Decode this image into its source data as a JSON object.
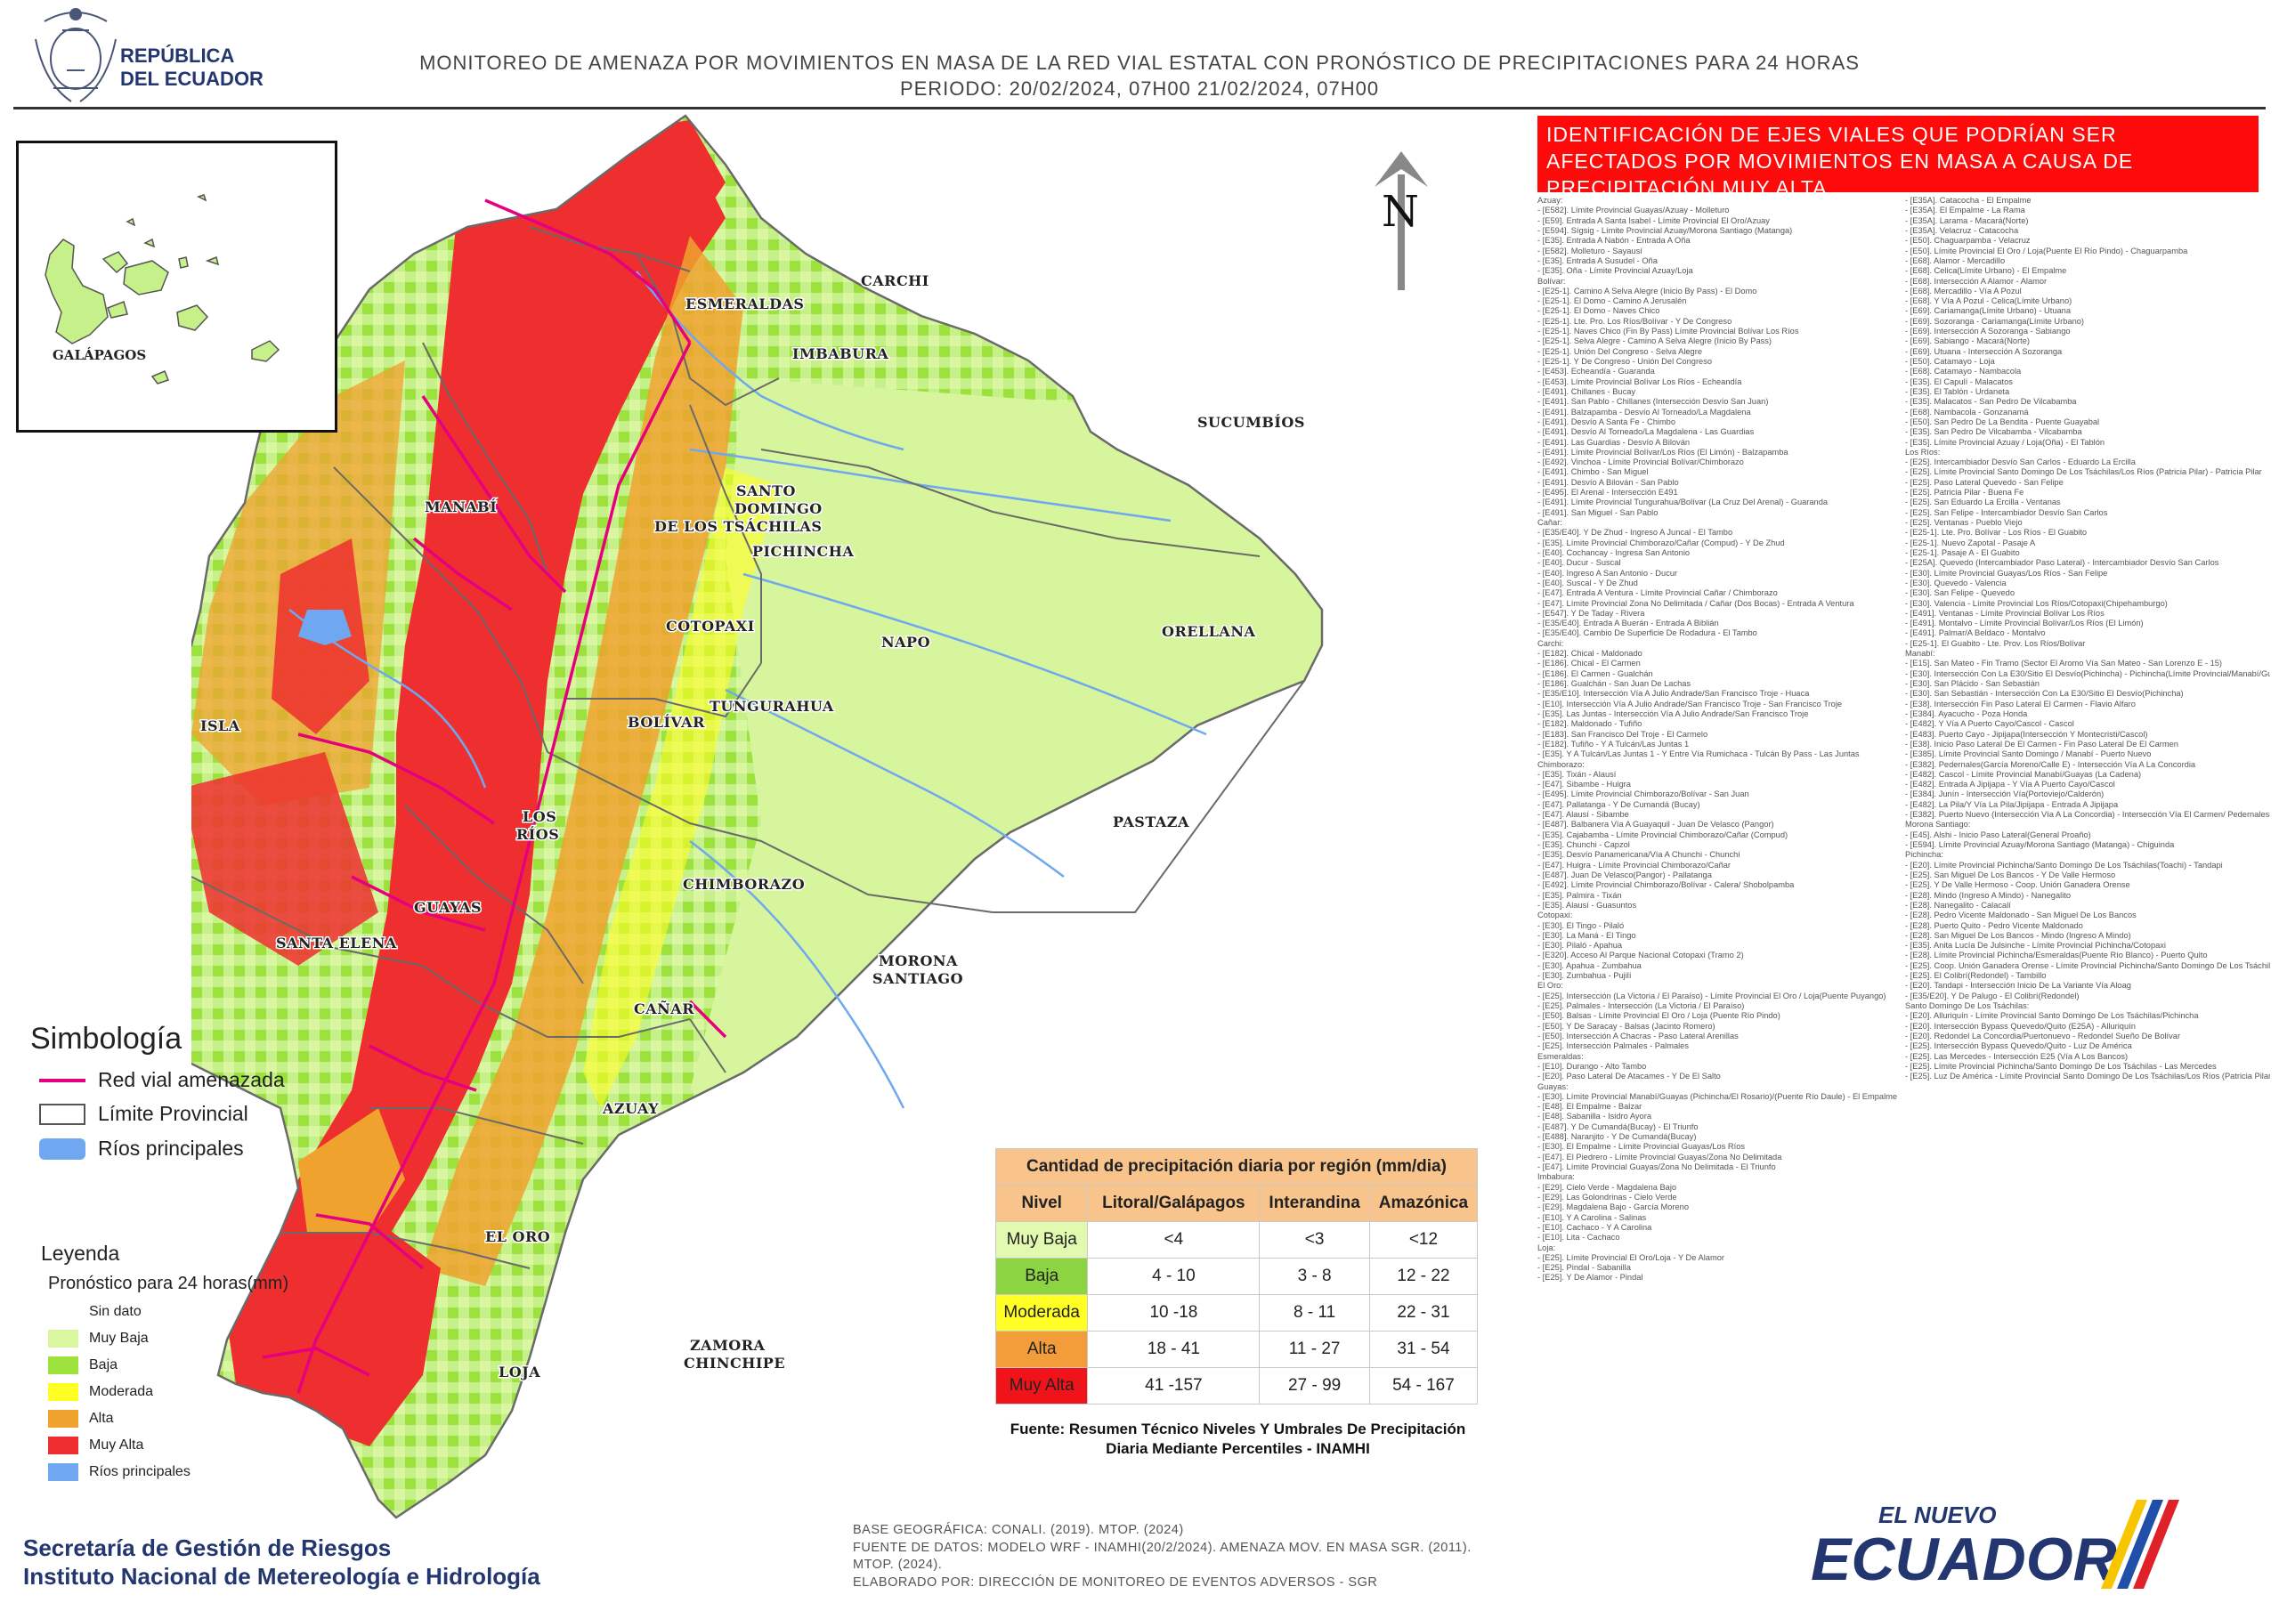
{
  "header": {
    "country_line1": "REPÚBLICA",
    "country_line2": "DEL ECUADOR",
    "title_line1": "MONITOREO DE AMENAZA POR MOVIMIENTOS EN MASA DE LA RED VIAL  ESTATAL  CON PRONÓSTICO  DE  PRECIPITACIONES PARA 24 HORAS",
    "title_line2": "PERIODO: 20/02/2024, 07H00 21/02/2024, 07H00"
  },
  "inset": {
    "label": "GALÁPAGOS"
  },
  "north_arrow": {
    "label": "N"
  },
  "provinces": {
    "carchi": "CARCHI",
    "esmeraldas": "ESMERALDAS",
    "imbabura": "IMBABURA",
    "sucumbios": "SUCUMBÍOS",
    "manabi": "MANABÍ",
    "santo_domingo_1": "SANTO",
    "santo_domingo_2": "DOMINGO",
    "santo_domingo_3": "DE LOS TSÁCHILAS",
    "pichincha": "PICHINCHA",
    "napo": "NAPO",
    "orellana": "ORELLANA",
    "cotopaxi": "COTOPAXI",
    "isla": "ISLA",
    "bolivar": "BOLÍVAR",
    "tungurahua": "TUNGURAHUA",
    "los_rios_1": "LOS",
    "los_rios_2": "RÍOS",
    "pastaza": "PASTAZA",
    "chimborazo": "CHIMBORAZO",
    "guayas": "GUAYAS",
    "santa_elena": "SANTA ELENA",
    "morona_1": "MORONA",
    "morona_2": "SANTIAGO",
    "canar": "CAÑAR",
    "azuay": "AZUAY",
    "el_oro": "EL ORO",
    "zamora_1": "ZAMORA",
    "zamora_2": "CHINCHIPE",
    "loja": "LOJA"
  },
  "side_panel": {
    "header": "IDENTIFICACIÓN DE EJES VIALES QUE PODRÍAN SER AFECTADOS POR MOVIMIENTOS EN MASA A CAUSA DE PRECIPITACIÓN MUY ALTA",
    "column1": [
      "Azuay:",
      "- [E582]. Límite Provincial Guayas/Azuay - Molleturo",
      "- [E59]. Entrada A Santa Isabel - Límite Provincial El Oro/Azuay",
      "- [E594]. Sígsig - Límite Provincial Azuay/Morona Santiago (Matanga)",
      "- [E35]. Entrada A Nabón - Entrada A Oña",
      "- [E582]. Molleturo - Sayausí",
      "- [E35]. Entrada A Susudel - Oña",
      "- [E35]. Oña - Límite Provincial Azuay/Loja",
      "Bolívar:",
      "- [E25-1]. Camino A Selva Alegre (Inicio By Pass) - El Domo",
      "- [E25-1]. El Domo - Camino A Jerusalén",
      "- [E25-1]. El Domo - Naves Chico",
      "- [E25-1]. Lte. Pro. Los Ríos/Bolívar - Y De Congreso",
      "- [E25-1]. Naves Chico (Fin By Pass) Límite Provincial Bolívar Los Ríos",
      "- [E25-1]. Selva Alegre - Camino A Selva Alegre (Inicio By Pass)",
      "- [E25-1]. Unión Del Congreso - Selva  Alegre",
      "- [E25-1]. Y De Congreso - Unión Del Congreso",
      "- [E453]. Echeandía - Guaranda",
      "- [E453]. Límite Provincial Bolívar Los Ríos - Echeandía",
      "- [E491]. Chillanes - Bucay",
      "- [E491]. San Pablo - Chillanes (Intersección Desvío San Juan)",
      "- [E491]. Balzapamba - Desvío Al Torneado/La Magdalena",
      "- [E491]. Desvío A Santa Fe - Chimbo",
      "- [E491]. Desvío Al Torneado/La Magdalena - Las Guardias",
      "- [E491]. Las Guardias - Desvío A Bilován",
      "- [E491]. Límite Provincial Bolívar/Los Ríos (El Limón) - Balzapamba",
      "- [E492]. Vinchoa - Límite Provincial Bolívar/Chimborazo",
      "- [E491]. Chimbo - San Miguel",
      "- [E491]. Desvío A Bilován - San Pablo",
      "- [E495]. El Arenal - Intersección E491",
      "- [E491]. Límite Provincial Tungurahua/Bolívar (La Cruz Del Arenal) - Guaranda",
      "- [E491]. San Miguel - San Pablo",
      "Cañar:",
      "- [E35/E40]. Y De Zhud - Ingreso A Juncal - El Tambo",
      "- [E35]. Límite Provincial Chimborazo/Cañar (Compud) - Y De Zhud",
      "- [E40]. Cochancay - Ingresa San Antonio",
      "- [E40]. Ducur - Suscal",
      "- [E40]. Ingreso A San Antonio - Ducur",
      "- [E40]. Suscal - Y De Zhud",
      "- [E47]. Entrada A Ventura - Límite Provincial Cañar / Chimborazo",
      "- [E47]. Límite Provincial Zona No Delimitada / Cañar (Dos Bocas) - Entrada  A Ventura",
      "- [E547]. Y De Taday - Rivera",
      "- [E35/E40]. Entrada A Buerán - Entrada A Biblián",
      "- [E35/E40]. Cambio De Superficie De Rodadura - El Tambo",
      "Carchi:",
      "- [E182]. Chical - Maldonado",
      "- [E186]. Chical - El Carmen",
      "- [E186]. El Carmen - Gualchán",
      "- [E186]. Gualchán - San Juan De Lachas",
      "- [E35/E10]. Intersección Vía A Julio Andrade/San Francisco Troje - Huaca",
      "- [E10]. Intersección Vía A Julio Andrade/San Francisco Troje - San Francisco Troje",
      "- [E35]. Las Juntas - Intersección Vía A Julio Andrade/San Francisco Troje",
      "- [E182]. Maldonado - Tufiño",
      "- [E183]. San Francisco Del Troje - El Carmelo",
      "- [E182]. Tufiño - Y A Tulcán/Las Juntas 1",
      "- [E35]. Y A Tulcán/Las Juntas 1 - Y Entre Vía Rumichaca - Tulcán By Pass - Las Juntas",
      "Chimborazo:",
      "- [E35]. Tixán - Alausí",
      "- [E47]. Sibambe - Huigra",
      "- [E495]. Límite Provincial Chimborazo/Bolívar - San Juan",
      "- [E47]. Pallatanga - Y De Cumandá (Bucay)",
      "- [E47]. Alausí - Sibambe",
      "- [E487]. Balbanera Vía A Guayaquil - Juan De Velasco (Pangor)",
      "- [E35]. Cajabamba - Límite Provincial Chimborazo/Cañar (Compud)",
      "- [E35]. Chunchi - Capzol",
      "- [E35]. Desvío Panamericana/Vía A Chunchi - Chunchi",
      "- [E47]. Huigra - Límite Provincial Chimborazo/Cañar",
      "- [E487]. Juan De Velasco(Pangor) - Pallatanga",
      "- [E492]. Límite Provincial Chimborazo/Bolívar - Calera/ Shobolpamba",
      "- [E35]. Palmira - Tixán",
      "- [E35]. Alausí - Guasuntos",
      "Cotopaxi:",
      "- [E30]. El Tingo - Pilaló",
      "- [E30]. La Maná - El Tingo",
      "- [E30]. Pilaló - Apahua",
      "- [E320]. Acceso Al Parque Nacional Cotopaxi (Tramo 2)",
      "- [E30]. Apahua - Zumbahua",
      "- [E30]. Zumbahua - Pujilí",
      "El Oro:",
      "- [E25]. Intersección (La Victoria / El Paraíso) - Límite Provincial El Oro / Loja(Puente Puyango)",
      "- [E25]. Palmales - Intersección (La Victoria / El Paraíso)",
      "- [E50]. Balsas - Límite Provincial El Oro / Loja (Puente Río Pindo)",
      "- [E50]. Y De Saracay - Balsas (Jacinto Romero)",
      "- [E50]. Intersección A Chacras - Paso Lateral Arenillas",
      "- [E25]. Intersección Palmales - Palmales",
      "Esmeraldas:",
      "- [E10]. Durango - Alto Tambo",
      "- [E20]. Paso Lateral De Atacames - Y De El Salto",
      "Guayas:",
      "- [E30]. Límite Provincial Manabí/Guayas (Pichincha/El Rosario)/(Puente Río Daule) - El Empalme",
      "- [E48]. El Empalme - Balzar",
      "- [E48]. Sabanilla - Isidro Ayora",
      "- [E487]. Y De Cumandá(Bucay) - El Triunfo",
      "- [E488]. Naranjito - Y De Cumandá(Bucay)",
      "- [E30]. El Empalme - Límite Provincial Guayas/Los Ríos",
      "- [E47]. El Piedrero - Límite Provincial Guayas/Zona No Delimitada",
      "- [E47]. Límite Provincial Guayas/Zona No Delimitada - El Triunfo",
      "Imbabura:",
      "- [E29]. Cielo Verde - Magdalena Bajo",
      "- [E29]. Las Golondrinas - Cielo Verde",
      "- [E29]. Magdalena Bajo - García Moreno",
      "- [E10]. Y A Carolina - Salinas",
      "- [E10]. Cachaco - Y A Carolina",
      "- [E10]. Lita - Cachaco",
      "Loja:",
      "- [E25]. Límite Provincial El Oro/Loja - Y De Alamor",
      "- [E25]. Pindal - Sabanilla",
      "- [E25]. Y De Alamor - Pindal"
    ],
    "column2": [
      "- [E35A]. Catacocha - El Empalme",
      "- [E35A]. El Empalme - La Rama",
      "- [E35A]. Larama - Macará(Norte)",
      "- [E35A]. Velacruz - Catacocha",
      "- [E50]. Chaguarpamba - Velacruz",
      "- [E50]. Límite Provincial El Oro / Loja(Puente El Río Pindo) - Chaguarpamba",
      "- [E68]. Alamor - Mercadillo",
      "- [E68]. Celica(Límite Urbano) - El Empalme",
      "- [E68]. Intersección A Alamor - Alamor",
      "- [E68]. Mercadillo - Vía A Pozul",
      "- [E68]. Y Vía A Pozul - Celica(Límite Urbano)",
      "- [E69]. Cariamanga(Límite Urbano) - Utuana",
      "- [E69]. Sozoranga - Cariamanga(Límite Urbano)",
      "- [E69]. Intersección A Sozoranga - Sabiango",
      "- [E69]. Sabiango - Macará(Norte)",
      "- [E69]. Utuana - Intersección A Sozoranga",
      "- [E50]. Catamayo - Loja",
      "- [E68]. Catamayo - Nambacola",
      "- [E35]. El Capulí - Malacatos",
      "- [E35]. El Tablón - Urdaneta",
      "- [E35]. Malacatos - San Pedro De Vilcabamba",
      "- [E68]. Nambacola - Gonzanamá",
      "- [E50]. San Pedro De La Bendita - Puente Guayabal",
      "- [E35]. San Pedro De Vilcabamba - Vilcabamba",
      "- [E35]. Límite Provincial Azuay / Loja(Oña) - El Tablón",
      "Los Ríos:",
      "- [E25]. Intercambiador Desvío  San Carlos - Eduardo La Ercilla",
      "- [E25]. Límite Provincial Santo Domingo De Los Tsáchilas/Los Ríos (Patricia Pilar) - Patricia Pilar",
      "- [E25]. Paso Lateral Quevedo - San Felipe",
      "- [E25]. Patricia Pilar - Buena Fe",
      "- [E25]. San Eduardo La Ercilla - Ventanas",
      "- [E25]. San Felipe - Intercambiador Desvío  San Carlos",
      "- [E25]. Ventanas - Pueblo Viejo",
      "- [E25-1]. Lte. Pro. Bolívar - Los Ríos - El Guabito",
      "- [E25-1]. Nuevo Zapotal - Pasaje A",
      "- [E25-1]. Pasaje A - El Guabito",
      "- [E25A]. Quevedo (Intercambiador Paso Lateral) - Intercambiador Desvío  San Carlos",
      "- [E30]. Límite Provincial Guayas/Los Ríos - San Felipe",
      "- [E30]. Quevedo - Valencia",
      "- [E30]. San Felipe - Quevedo",
      "- [E30]. Valencia - Límite Provincial Los Ríos/Cotopaxi(Chipehamburgo)",
      "- [E491]. Ventanas - Límite Provincial Bolívar Los Ríos",
      "- [E491]. Montalvo - Límite Provincial Bolívar/Los Ríos (El Limón)",
      "- [E491]. Palmar/A Beldaco - Montalvo",
      "- [E25-1]. El Guabito - Lte. Prov. Los Ríos/Bolívar",
      "Manabí:",
      "- [E15]. San Mateo - Fin Tramo (Sector El Aromo Vía San Mateo - San Lorenzo E - 15)",
      "- [E30]. Intersección Con La E30/Sitio El Desvío(Pichincha) - Pichincha(Límite Provincial/Manabí/Guayas)",
      "- [E30]. San Plácido - San Sebastián",
      "- [E30]. San Sebastián - Intersección Con La E30/Sitio El Desvío(Pichincha)",
      "- [E38]. Intersección Fin Paso Lateral El Carmen - Flavio Alfaro",
      "- [E384]. Ayacucho - Poza Honda",
      "- [E482]. Y Vía A Puerto Cayo/Cascol - Cascol",
      "- [E483]. Puerto Cayo - Jipijapa(Intersección Y Montecristi/Cascol)",
      "- [E38]. Inicio Paso Lateral De El Carmen - Fin Paso Lateral De El Carmen",
      "- [E385]. Límite Provincial Santo Domingo / Manabí - Puerto Nuevo",
      "- [E382]. Pedernales(García Moreno/Calle E) - Intersección Vía A La Concordia",
      "- [E482]. Cascol - Límite Provincial Manabí/Guayas (La Cadena)",
      "- [E482]. Entrada A Jipijapa - Y Vía A Puerto Cayo/Cascol",
      "- [E384]. Junín - Intersección Vía(Portoviejo/Calderón)",
      "- [E482]. La Pila/Y Vía La Pila/Jipijapa - Entrada A Jipijapa",
      "- [E382]. Puerto Nuevo (Intersección Vía A La Concordia) - Intersección Vía El Carmen/ Pedernales(Redondel)",
      "Morona Santiago:",
      "- [E45]. Alshi - Inicio Paso Lateral(General Proaño)",
      "- [E594]. Límite Provincial Azuay/Morona Santiago (Matanga) - Chiguinda",
      "Pichincha:",
      "- [E20]. Límite Provincial Pichincha/Santo Domingo De Los Tsáchilas(Toachi) - Tandapi",
      "- [E25]. San Miguel De Los Bancos - Y De Valle Hermoso",
      "- [E25]. Y De Valle Hermoso - Coop. Unión Ganadera Orense",
      "- [E28]. Mindo (Ingreso A Mindo) - Nanegalito",
      "- [E28]. Nanegalito - Calacalí",
      "- [E28]. Pedro Vicente Maldonado - San Miguel De Los Bancos",
      "- [E28]. Puerto Quito - Pedro Vicente Maldonado",
      "- [E28]. San Miguel De Los Bancos - Mindo (Ingreso A Mindo)",
      "- [E35]. Anita Lucía De Julsinche - Límite Provincial Pichincha/Cotopaxi",
      "- [E28]. Límite Provincial Pichincha/Esmeraldas(Puente Río Blanco) - Puerto Quito",
      "- [E25]. Coop. Unión Ganadera Orense - Límite Provincial Pichincha/Santo Domingo De Los Tsáchilas(Puente Río Mulaute)",
      "- [E25]. El Colibrí(Redondel) - Tambillo",
      "- [E20]. Tandapi - Intersección Inicio De La Variante Vía Aloag",
      "- [E35/E20]. Y De Palugo - El Colibrí(Redondel)",
      "Santo Domingo De Los Tsáchilas:",
      "- [E20]. Alluriquín - Límite Provincial Santo Domingo De Los Tsáchilas/Pichincha",
      "- [E20]. Intersección Bypass Quevedo/Quito (E25A) - Alluriquín",
      "- [E20]. Redondel La Concordia/Puertonuevo - Redondel Sueño De Bolívar",
      "- [E25]. Intersección Bypass Quevedo/Quito - Luz De América",
      "- [E25]. Las Mercedes - Intersección E25 (Vía A Los Bancos)",
      "- [E25]. Límite Provincial Pichincha/Santo Domingo De Los Tsáchilas - Las Mercedes",
      "- [E25]. Luz De América - Límite Provincial Santo Domingo De Los Tsáchilas/Los Ríos (Patricia Pilar)"
    ]
  },
  "symbology": {
    "title": "Simbología",
    "items": [
      {
        "label": "Red vial amenazada",
        "color": "#e6007e"
      },
      {
        "label": "Límite Provincial",
        "color": "#555555"
      },
      {
        "label": "Ríos principales",
        "color": "#6fa8f0"
      }
    ]
  },
  "legend": {
    "title": "Leyenda",
    "subtitle": "Pronóstico para 24 horas(mm)",
    "items": [
      {
        "label": "Sin dato",
        "color": ""
      },
      {
        "label": "Muy Baja",
        "color": "#d9f6a0"
      },
      {
        "label": "Baja",
        "color": "#9de23c"
      },
      {
        "label": "Moderada",
        "color": "#ffff24"
      },
      {
        "label": "Alta",
        "color": "#f0a22f"
      },
      {
        "label": "Muy Alta",
        "color": "#ef2f2f"
      },
      {
        "label": "Ríos principales",
        "color": "#6fa8f0"
      }
    ]
  },
  "precip_table": {
    "caption": "Cantidad de precipitación diaria por región (mm/dia)",
    "headers": [
      "Nivel",
      "Litoral/Galápagos",
      "Interandina",
      "Amazónica"
    ],
    "rows": [
      {
        "nivel": "Muy Baja",
        "color": "#e2f9b0",
        "litoral": "<4",
        "interandina": "<3",
        "amazonica": "<12"
      },
      {
        "nivel": "Baja",
        "color": "#8dd443",
        "litoral": "4 - 10",
        "interandina": "3 - 8",
        "amazonica": "12 - 22"
      },
      {
        "nivel": "Moderada",
        "color": "#ffff26",
        "litoral": "10 -18",
        "interandina": "8 - 11",
        "amazonica": "22 - 31"
      },
      {
        "nivel": "Alta",
        "color": "#f29d3a",
        "litoral": "18 - 41",
        "interandina": "11 - 27",
        "amazonica": "31 - 54"
      },
      {
        "nivel": "Muy Alta",
        "color": "#f0141a",
        "litoral": "41 -157",
        "interandina": "27 - 99",
        "amazonica": "54 - 167"
      }
    ],
    "source": "Fuente: Resumen Técnico Niveles Y Umbrales De Precipitación Diaria Mediante Percentiles - INAMHI"
  },
  "footer": {
    "org1": "Secretaría de Gestión de Riesgos",
    "org2": "Instituto Nacional de Metereología e Hidrología",
    "credit1": "BASE GEOGRÁFICA: CONALI. (2019). MTOP. (2024)",
    "credit2": "FUENTE DE DATOS: MODELO WRF - INAMHI(20/2/2024).  AMENAZA MOV. EN MASA SGR. (2011). MTOP. (2024).",
    "credit3": "ELABORADO POR: DIRECCIÓN DE MONITOREO DE EVENTOS ADVERSOS - SGR",
    "logo_top": "EL NUEVO",
    "logo_main": "ECUADOR"
  }
}
